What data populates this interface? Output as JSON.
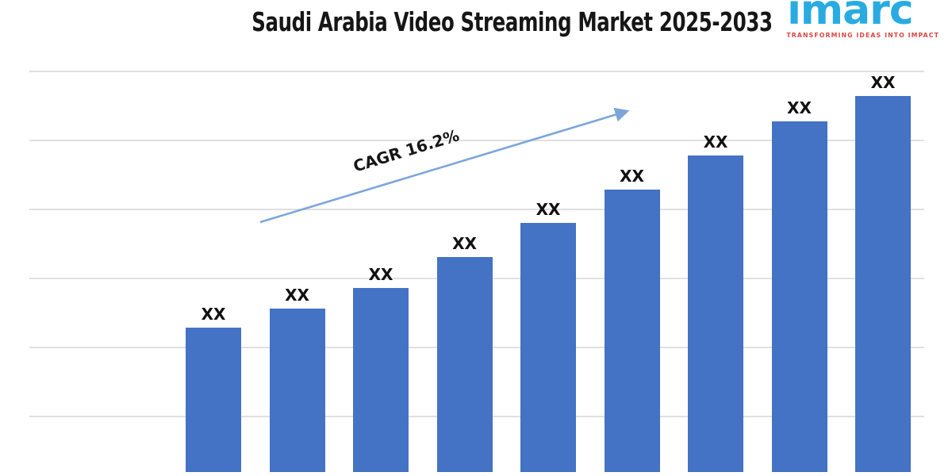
{
  "chart_data": {
    "type": "bar",
    "title": "Saudi Arabia Video Streaming Market 2025-2033",
    "bar_labels": [
      "XX",
      "XX",
      "XX",
      "XX",
      "XX",
      "XX",
      "XX",
      "XX",
      "XX"
    ],
    "values_relative": [
      182,
      206,
      232,
      271,
      314,
      356,
      399,
      442,
      474
    ],
    "bar_color": "#4472c4",
    "grid": true,
    "gridline_count": 6,
    "x_tick_labels_visible": false,
    "annotation": {
      "text": "CAGR 16.2%",
      "arrow_color": "#7ca6d9"
    }
  },
  "logo": {
    "name": "imarc",
    "tagline": "TRANSFORMING IDEAS INTO IMPACT",
    "color": "#29abe2",
    "tagline_color": "#d84843"
  }
}
